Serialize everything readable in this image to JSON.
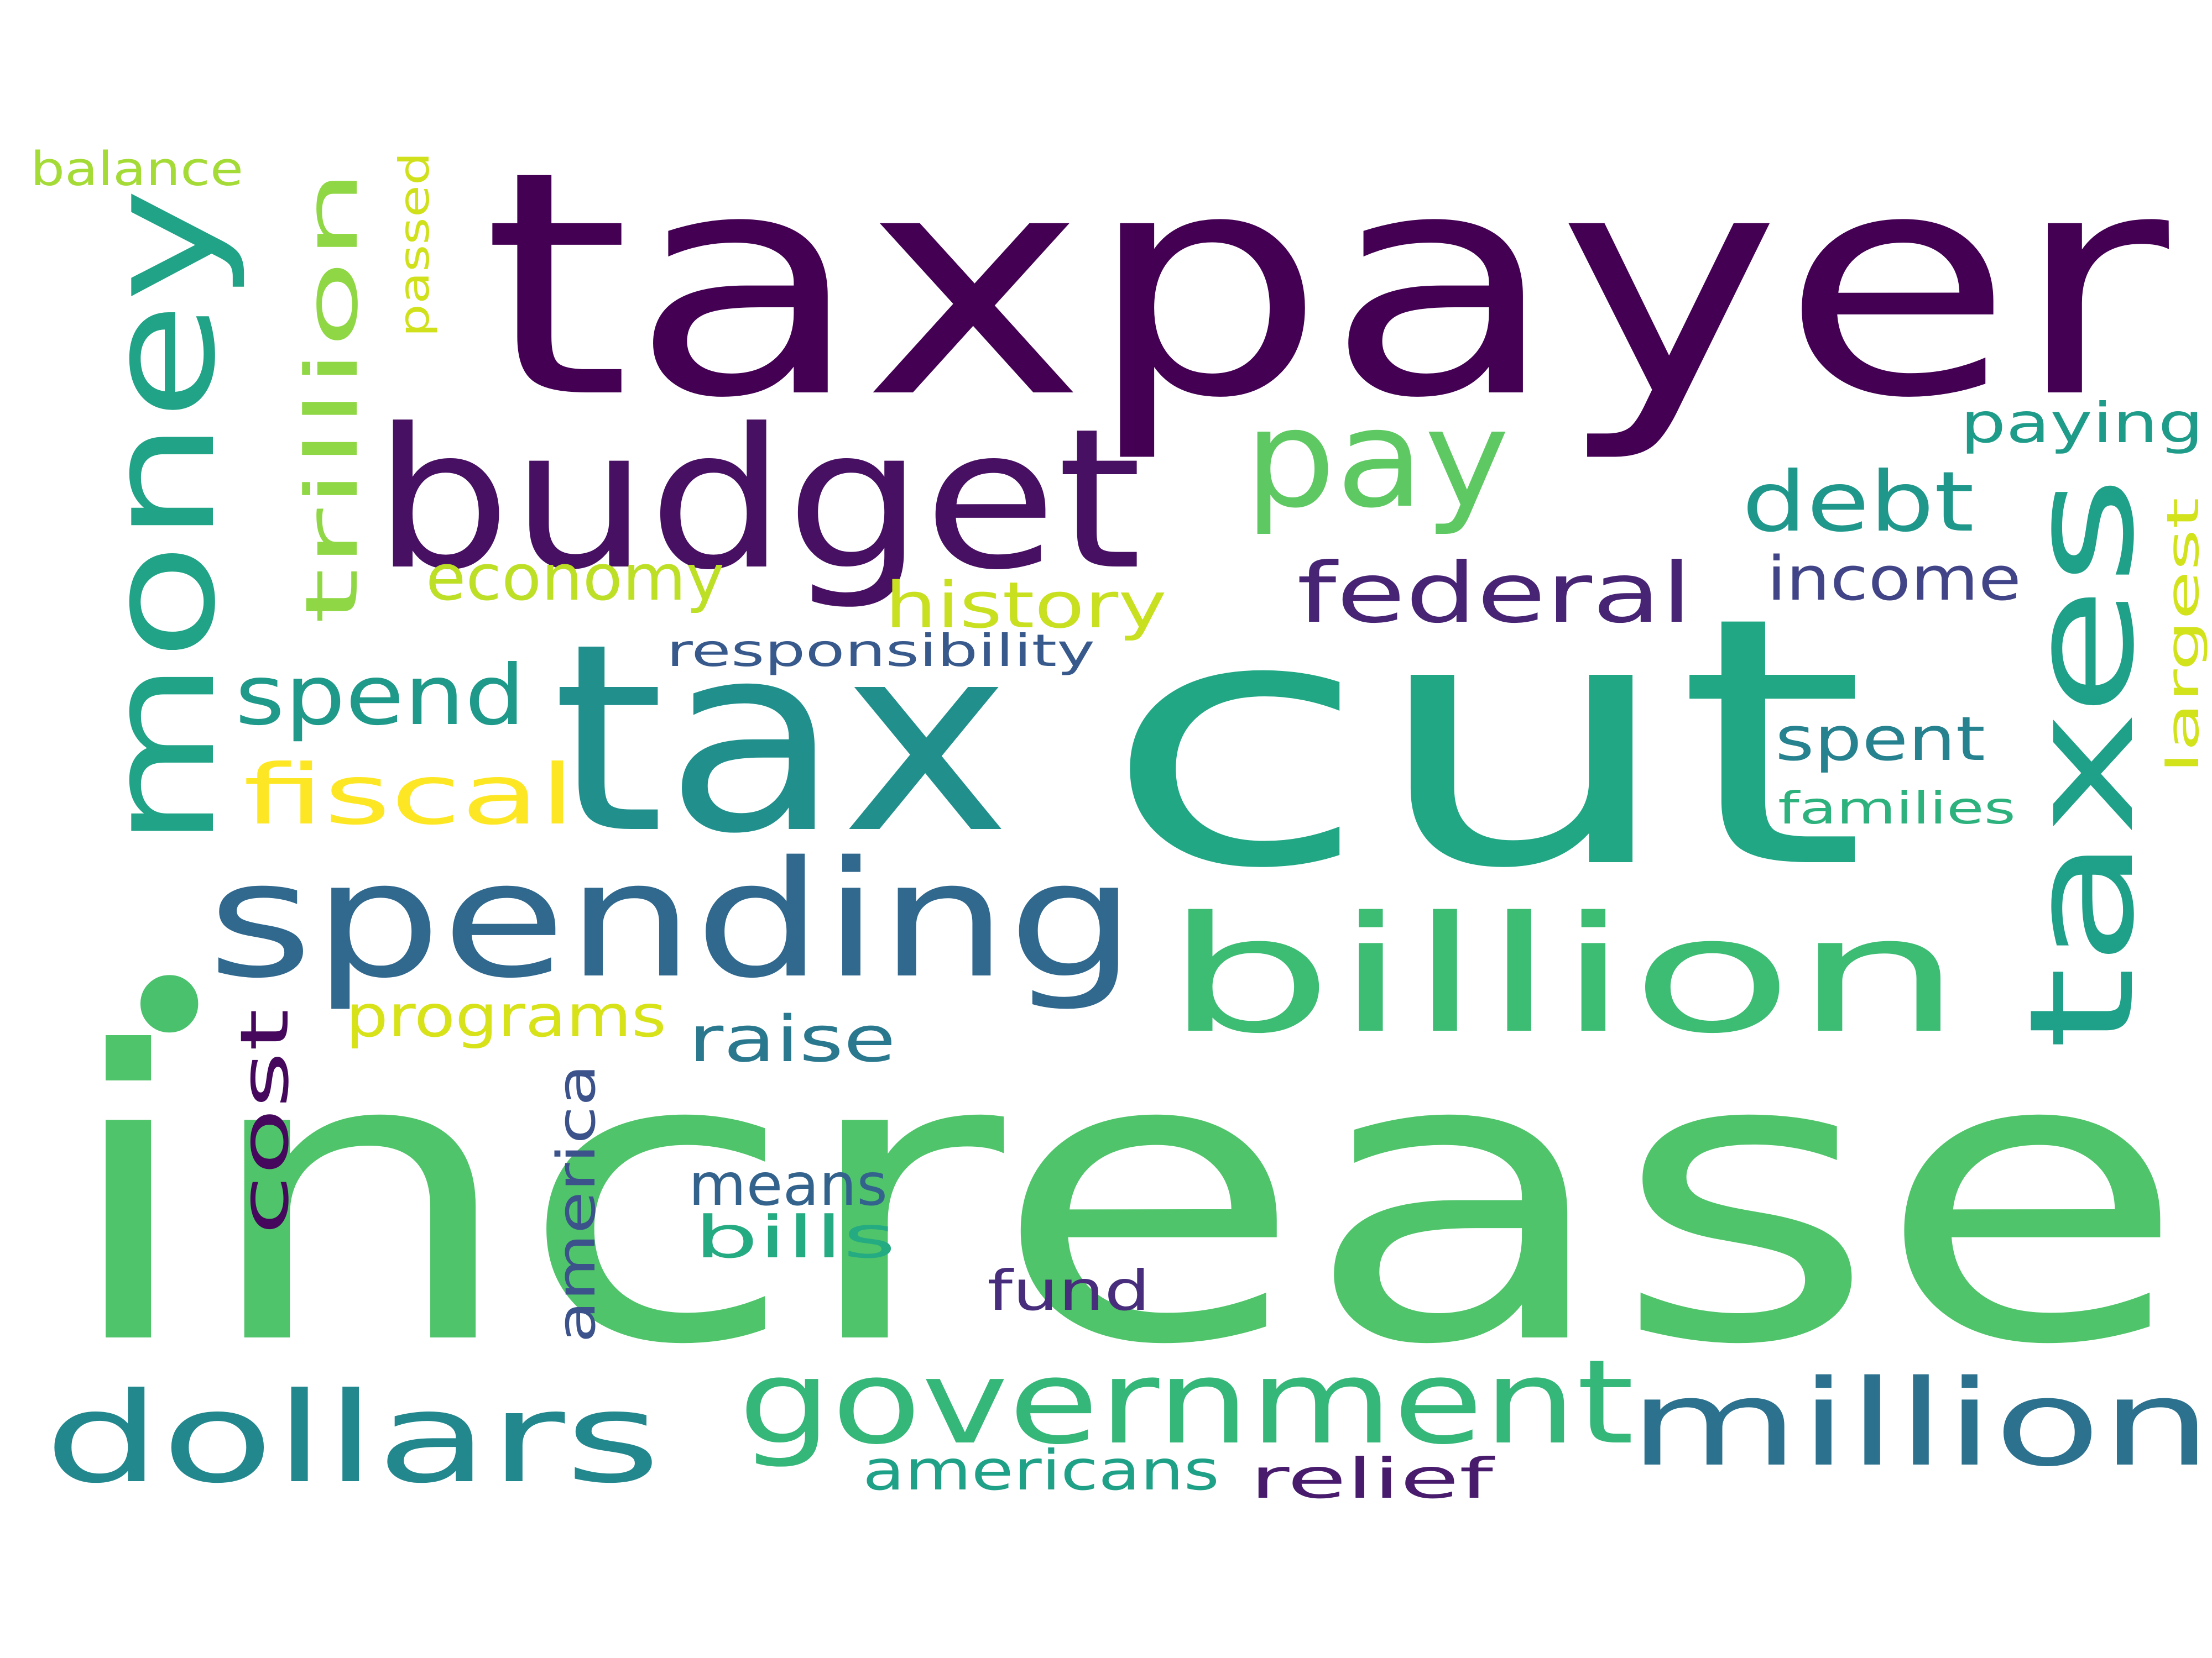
{
  "words": [
    {
      "text": "increase",
      "color": "#50c46a"
    },
    {
      "text": "cut",
      "color": "#22a785"
    },
    {
      "text": "taxpayer",
      "color": "#440154"
    },
    {
      "text": "tax",
      "color": "#21908d"
    },
    {
      "text": "money",
      "color": "#20a386"
    },
    {
      "text": "budget",
      "color": "#471063"
    },
    {
      "text": "spending",
      "color": "#31688e"
    },
    {
      "text": "billion",
      "color": "#3dbc74"
    },
    {
      "text": "taxes",
      "color": "#1fa088"
    },
    {
      "text": "government",
      "color": "#35b779"
    },
    {
      "text": "dollars",
      "color": "#23888e"
    },
    {
      "text": "million",
      "color": "#2c728e"
    },
    {
      "text": "pay",
      "color": "#5ec962"
    },
    {
      "text": "trillion",
      "color": "#8fd744"
    },
    {
      "text": "federal",
      "color": "#482475"
    },
    {
      "text": "debt",
      "color": "#1f988b"
    },
    {
      "text": "fiscal",
      "color": "#fde725"
    },
    {
      "text": "spend",
      "color": "#1f9a8a"
    },
    {
      "text": "cost",
      "color": "#46085c"
    },
    {
      "text": "history",
      "color": "#c8e020"
    },
    {
      "text": "economy",
      "color": "#bddf26"
    },
    {
      "text": "income",
      "color": "#414487"
    },
    {
      "text": "programs",
      "color": "#d8e219"
    },
    {
      "text": "spent",
      "color": "#26828e"
    },
    {
      "text": "raise",
      "color": "#2a788e"
    },
    {
      "text": "means",
      "color": "#33638d"
    },
    {
      "text": "bills",
      "color": "#25ab82"
    },
    {
      "text": "america",
      "color": "#3b528b"
    },
    {
      "text": "paying",
      "color": "#1e9c89"
    },
    {
      "text": "largest",
      "color": "#d2e21b"
    },
    {
      "text": "fund",
      "color": "#472d7b"
    },
    {
      "text": "relief",
      "color": "#481b6d"
    },
    {
      "text": "americans",
      "color": "#1fa187"
    },
    {
      "text": "families",
      "color": "#2db27d"
    },
    {
      "text": "responsibility",
      "color": "#38598c"
    },
    {
      "text": "balance",
      "color": "#a5db36"
    },
    {
      "text": "passed",
      "color": "#d0e11c"
    },
    {
      "text": "•",
      "color": "#4ac16d"
    }
  ]
}
